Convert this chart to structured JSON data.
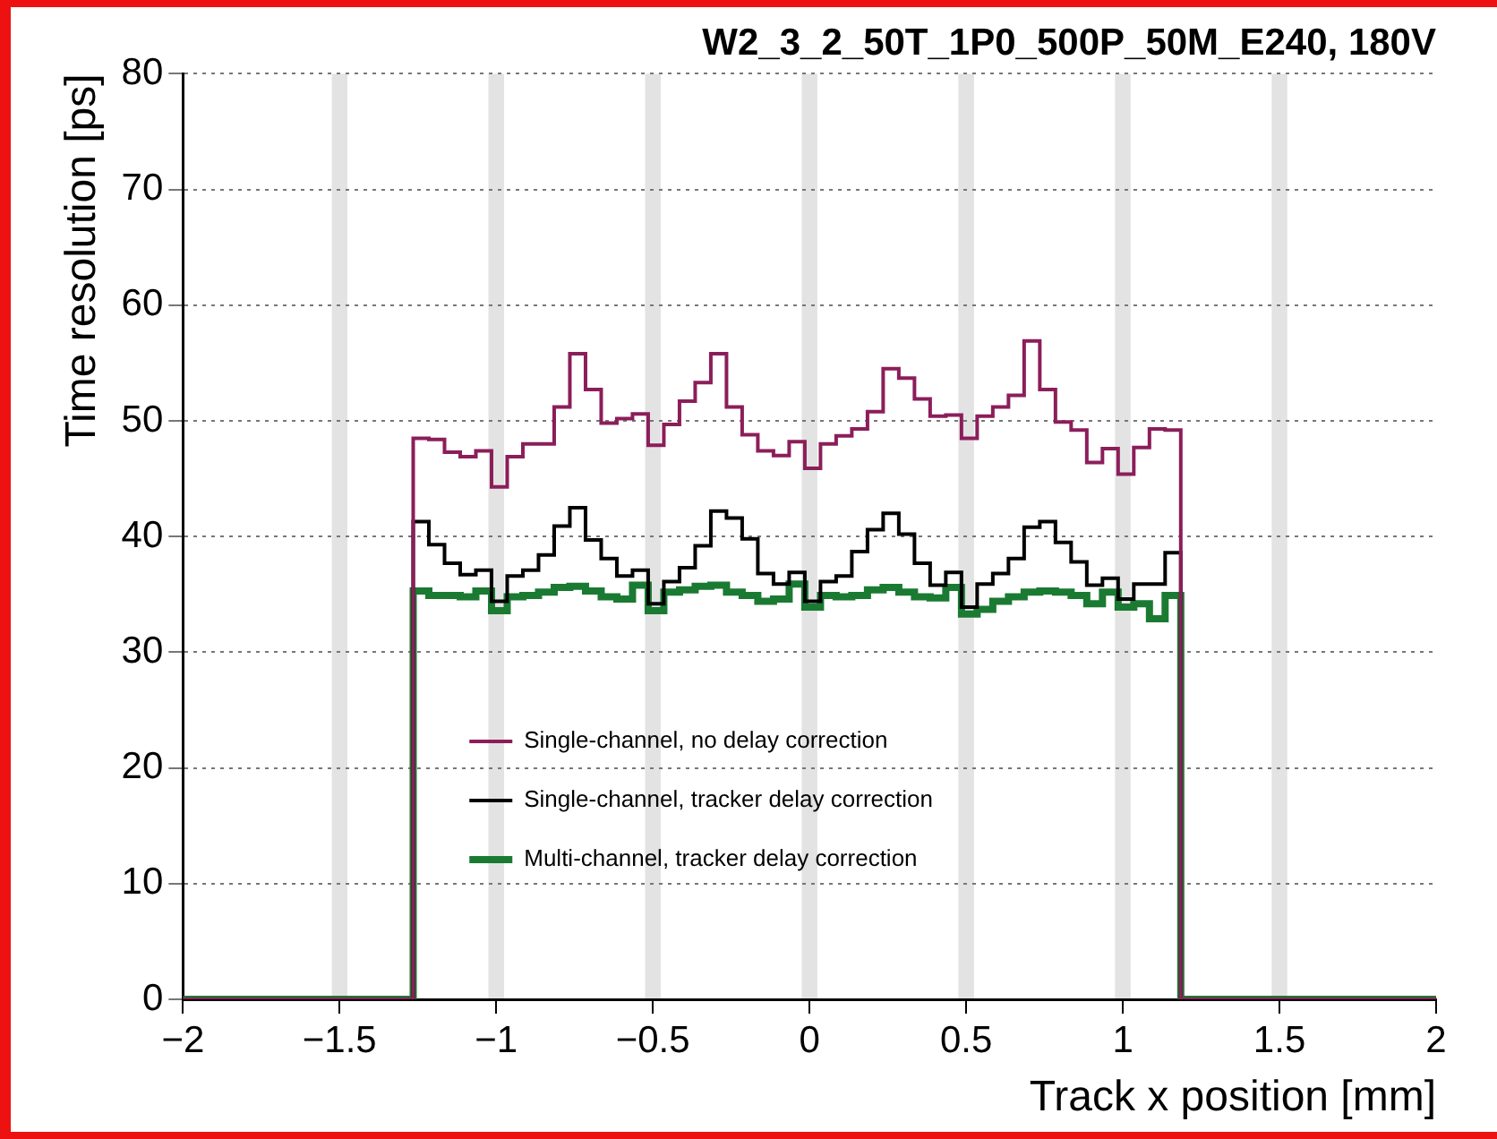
{
  "chart_data": {
    "type": "histogram",
    "title": "W2_3_2_50T_1P0_500P_50M_E240, 180V",
    "xlabel": "Track x position [mm]",
    "ylabel": "Time resolution [ps]",
    "bins": [
      -2,
      -1.265,
      -1.215,
      -1.165,
      -1.115,
      -1.065,
      -1.015,
      -0.965,
      -0.915,
      -0.865,
      -0.815,
      -0.765,
      -0.715,
      -0.665,
      -0.615,
      -0.565,
      -0.515,
      -0.465,
      -0.415,
      -0.365,
      -0.315,
      -0.265,
      -0.215,
      -0.165,
      -0.115,
      -0.065,
      -0.015,
      0.035,
      0.085,
      0.135,
      0.185,
      0.235,
      0.285,
      0.335,
      0.385,
      0.435,
      0.485,
      0.535,
      0.585,
      0.635,
      0.685,
      0.735,
      0.785,
      0.835,
      0.885,
      0.935,
      0.985,
      1.035,
      1.085,
      1.135,
      1.185,
      2
    ],
    "series": [
      {
        "name": "Single-channel, no delay correction",
        "color": "#8b1e5a",
        "values": [
          0,
          48.5,
          48.4,
          47.3,
          46.9,
          47.4,
          44.3,
          46.9,
          48,
          48,
          51.2,
          55.8,
          52.7,
          49.8,
          50.2,
          50.6,
          47.9,
          49.7,
          51.7,
          53.3,
          55.8,
          51.2,
          48.8,
          47.4,
          47,
          48.2,
          45.9,
          48,
          48.7,
          49.3,
          50.8,
          54.5,
          53.7,
          51.9,
          50.4,
          50.5,
          48.5,
          50.4,
          51.2,
          52.2,
          56.9,
          52.7,
          49.9,
          49.2,
          46.4,
          47.6,
          45.4,
          47.7,
          49.3,
          49.2,
          0
        ]
      },
      {
        "name": "Single-channel, tracker delay correction",
        "color": "#000000",
        "values": [
          0,
          41.3,
          39.3,
          37.7,
          36.7,
          37.1,
          34.4,
          36.6,
          37.1,
          38.4,
          40.9,
          42.5,
          39.7,
          38.1,
          36.6,
          37.1,
          34.2,
          36.1,
          37.3,
          39.2,
          42.2,
          41.6,
          39.8,
          36.8,
          35.9,
          36.9,
          34.4,
          36.1,
          36.6,
          38.7,
          40.6,
          42,
          40.2,
          37.7,
          35.8,
          36.9,
          33.9,
          35.9,
          36.8,
          38.1,
          40.8,
          41.3,
          39.5,
          37.8,
          35.8,
          36.4,
          34.6,
          35.9,
          35.9,
          38.6,
          0
        ]
      },
      {
        "name": "Multi-channel, tracker delay correction",
        "color": "#1a7a32",
        "values": [
          0,
          35.3,
          34.9,
          34.9,
          34.8,
          35.3,
          33.6,
          34.8,
          34.9,
          35.2,
          35.6,
          35.7,
          35.3,
          34.8,
          34.6,
          35.8,
          33.6,
          35.2,
          35.4,
          35.7,
          35.8,
          35.2,
          34.9,
          34.4,
          34.6,
          35.9,
          33.9,
          34.9,
          34.8,
          34.9,
          35.4,
          35.6,
          35.2,
          34.8,
          34.7,
          35.6,
          33.3,
          33.7,
          34.4,
          34.8,
          35.2,
          35.3,
          35.2,
          34.9,
          34.2,
          35.2,
          33.9,
          34.2,
          32.9,
          34.9,
          0
        ]
      }
    ],
    "xlim": [
      -2,
      2
    ],
    "xticks": [
      {
        "value": -2,
        "label": "−2"
      },
      {
        "value": -1.5,
        "label": "−1.5"
      },
      {
        "value": -1,
        "label": "−1"
      },
      {
        "value": -0.5,
        "label": "−0.5"
      },
      0,
      0.5,
      1,
      1.5,
      2
    ],
    "ylim": [
      0,
      80
    ],
    "yticks": [
      0,
      10,
      20,
      30,
      40,
      50,
      60,
      70,
      80
    ],
    "bands": [
      {
        "axis": "x",
        "from": -1.525,
        "to": -1.475,
        "color": "#e3e3e3"
      },
      {
        "axis": "x",
        "from": -1.025,
        "to": -0.975,
        "color": "#e3e3e3"
      },
      {
        "axis": "x",
        "from": -0.525,
        "to": -0.475,
        "color": "#e3e3e3"
      },
      {
        "axis": "x",
        "from": -0.025,
        "to": 0.025,
        "color": "#e3e3e3"
      },
      {
        "axis": "x",
        "from": 0.475,
        "to": 0.525,
        "color": "#e3e3e3"
      },
      {
        "axis": "x",
        "from": 0.975,
        "to": 1.025,
        "color": "#e3e3e3"
      },
      {
        "axis": "x",
        "from": 1.475,
        "to": 1.525,
        "color": "#e3e3e3"
      }
    ],
    "grid": "y",
    "legend": "bottom left"
  }
}
